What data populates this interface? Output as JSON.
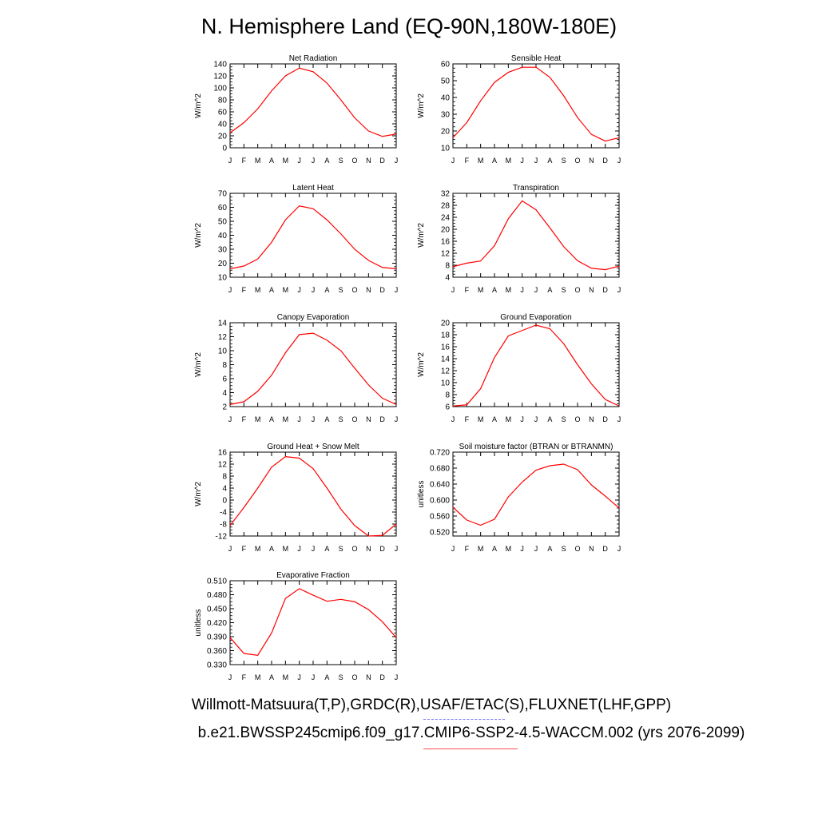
{
  "title": "N. Hemisphere Land (EQ-90N,180W-180E)",
  "footer": {
    "observations": "Willmott-Matsuura(T,P),GRDC(R),USAF/ETAC(S),FLUXNET(LHF,GPP)",
    "case": "b.e21.BWSSP245cmip6.f09_g17.CMIP6-SSP2-4.5-WACCM.002 (yrs 2076-2099)"
  },
  "colors": {
    "model_line": "#ff0000",
    "obs_legend": "#7b7bff",
    "case_legend": "#ff4d4d"
  },
  "chart_data": [
    {
      "type": "line",
      "title": "Net Radiation",
      "ylabel": "W/m^2",
      "categories": [
        "J",
        "F",
        "M",
        "A",
        "M",
        "J",
        "J",
        "A",
        "S",
        "O",
        "N",
        "D",
        "J"
      ],
      "ylim": [
        0,
        140
      ],
      "yticks": [
        "0",
        "20",
        "40",
        "60",
        "80",
        "100",
        "120",
        "140"
      ],
      "yticks_values": [
        0,
        20,
        40,
        60,
        80,
        100,
        120,
        140
      ],
      "values": [
        25,
        42,
        65,
        95,
        120,
        133,
        127,
        108,
        80,
        50,
        28,
        19,
        23
      ]
    },
    {
      "type": "line",
      "title": "Sensible Heat",
      "ylabel": "W/m^2",
      "categories": [
        "J",
        "F",
        "M",
        "A",
        "M",
        "J",
        "J",
        "A",
        "S",
        "O",
        "N",
        "D",
        "J"
      ],
      "ylim": [
        10,
        60
      ],
      "yticks": [
        "10",
        "20",
        "30",
        "40",
        "50",
        "60"
      ],
      "yticks_values": [
        10,
        20,
        30,
        40,
        50,
        60
      ],
      "values": [
        16,
        25,
        38,
        49,
        55,
        58,
        58,
        52,
        41,
        28,
        18,
        14,
        16
      ]
    },
    {
      "type": "line",
      "title": "Latent Heat",
      "ylabel": "W/m^2",
      "categories": [
        "J",
        "F",
        "M",
        "A",
        "M",
        "J",
        "J",
        "A",
        "S",
        "O",
        "N",
        "D",
        "J"
      ],
      "ylim": [
        10,
        70
      ],
      "yticks": [
        "10",
        "20",
        "30",
        "40",
        "50",
        "60",
        "70"
      ],
      "yticks_values": [
        10,
        20,
        30,
        40,
        50,
        60,
        70
      ],
      "values": [
        16,
        18,
        23,
        35,
        51,
        61,
        59,
        51,
        41,
        30,
        22,
        17,
        16
      ]
    },
    {
      "type": "line",
      "title": "Transpiration",
      "ylabel": "W/m^2",
      "categories": [
        "J",
        "F",
        "M",
        "A",
        "M",
        "J",
        "J",
        "A",
        "S",
        "O",
        "N",
        "D",
        "J"
      ],
      "ylim": [
        4,
        32
      ],
      "yticks": [
        "4",
        "8",
        "12",
        "16",
        "20",
        "24",
        "28",
        "32"
      ],
      "yticks_values": [
        4,
        8,
        12,
        16,
        20,
        24,
        28,
        32
      ],
      "values": [
        7.5,
        8.7,
        9.4,
        14.5,
        23.5,
        29.5,
        26.5,
        20.5,
        14.2,
        9.5,
        7,
        6.5,
        7.7
      ]
    },
    {
      "type": "line",
      "title": "Canopy Evaporation",
      "ylabel": "W/m^2",
      "categories": [
        "J",
        "F",
        "M",
        "A",
        "M",
        "J",
        "J",
        "A",
        "S",
        "O",
        "N",
        "D",
        "J"
      ],
      "ylim": [
        2,
        14
      ],
      "yticks": [
        "2",
        "4",
        "6",
        "8",
        "10",
        "12",
        "14"
      ],
      "yticks_values": [
        2,
        4,
        6,
        8,
        10,
        12,
        14
      ],
      "values": [
        2.3,
        2.7,
        4.2,
        6.5,
        9.7,
        12.3,
        12.5,
        11.5,
        10,
        7.5,
        5.1,
        3.2,
        2.3
      ]
    },
    {
      "type": "line",
      "title": "Ground Evaporation",
      "ylabel": "W/m^2",
      "categories": [
        "J",
        "F",
        "M",
        "A",
        "M",
        "J",
        "J",
        "A",
        "S",
        "O",
        "N",
        "D",
        "J"
      ],
      "ylim": [
        6,
        20
      ],
      "yticks": [
        "6",
        "8",
        "10",
        "12",
        "14",
        "16",
        "18",
        "20"
      ],
      "yticks_values": [
        6,
        8,
        10,
        12,
        14,
        16,
        18,
        20
      ],
      "values": [
        6.1,
        6.3,
        9,
        14.2,
        17.8,
        18.7,
        19.6,
        19,
        16.5,
        13,
        9.8,
        7.2,
        6.1
      ]
    },
    {
      "type": "line",
      "title": "Ground Heat + Snow Melt",
      "ylabel": "W/m^2",
      "categories": [
        "J",
        "F",
        "M",
        "A",
        "M",
        "J",
        "J",
        "A",
        "S",
        "O",
        "N",
        "D",
        "J"
      ],
      "ylim": [
        -12,
        16
      ],
      "yticks": [
        "-12",
        "-8",
        "-4",
        "0",
        "4",
        "8",
        "12",
        "16"
      ],
      "yticks_values": [
        -12,
        -8,
        -4,
        0,
        4,
        8,
        12,
        16
      ],
      "values": [
        -8.5,
        -2.5,
        4,
        11,
        14.5,
        14,
        10.5,
        4,
        -3,
        -8.5,
        -12,
        -11.8,
        -8
      ]
    },
    {
      "type": "line",
      "title": "Soil moisture factor (BTRAN or BTRANMN)",
      "ylabel": "unitless",
      "categories": [
        "J",
        "F",
        "M",
        "A",
        "M",
        "J",
        "J",
        "A",
        "S",
        "O",
        "N",
        "D",
        "J"
      ],
      "ylim": [
        0.51,
        0.72
      ],
      "yticks": [
        "0.520",
        "0.560",
        "0.600",
        "0.640",
        "0.680",
        "0.720"
      ],
      "yticks_values": [
        0.52,
        0.56,
        0.6,
        0.64,
        0.68,
        0.72
      ],
      "values": [
        0.582,
        0.55,
        0.537,
        0.552,
        0.608,
        0.645,
        0.675,
        0.686,
        0.69,
        0.676,
        0.638,
        0.61,
        0.58
      ]
    },
    {
      "type": "line",
      "title": "Evaporative Fraction",
      "ylabel": "unitless",
      "categories": [
        "J",
        "F",
        "M",
        "A",
        "M",
        "J",
        "J",
        "A",
        "S",
        "O",
        "N",
        "D",
        "J"
      ],
      "ylim": [
        0.33,
        0.51
      ],
      "yticks": [
        "0.330",
        "0.360",
        "0.390",
        "0.420",
        "0.450",
        "0.480",
        "0.510"
      ],
      "yticks_values": [
        0.33,
        0.36,
        0.39,
        0.42,
        0.45,
        0.48,
        0.51
      ],
      "values": [
        0.388,
        0.354,
        0.35,
        0.398,
        0.472,
        0.493,
        0.479,
        0.466,
        0.47,
        0.465,
        0.448,
        0.422,
        0.388
      ]
    }
  ]
}
